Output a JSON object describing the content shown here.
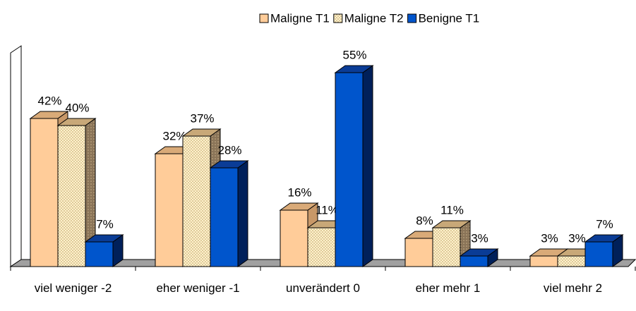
{
  "chart_data": {
    "type": "bar3d",
    "categories": [
      "viel weniger -2",
      "eher weniger -1",
      "unverändert 0",
      "eher mehr 1",
      "viel mehr 2"
    ],
    "series": [
      {
        "name": "Maligne T1",
        "color": "#ffcc99",
        "values": [
          42,
          32,
          16,
          8,
          3
        ],
        "value_labels": [
          "42%",
          "32%",
          "16%",
          "8%",
          "3%"
        ]
      },
      {
        "name": "Maligne T2",
        "color": "#fff2cc",
        "values": [
          40,
          37,
          11,
          11,
          3
        ],
        "value_labels": [
          "40%",
          "37%",
          "11%",
          "11%",
          "3%"
        ]
      },
      {
        "name": "Benigne T1",
        "color": "#0055cc",
        "values": [
          7,
          28,
          55,
          3,
          7
        ],
        "value_labels": [
          "7%",
          "28%",
          "55%",
          "3%",
          "7%"
        ]
      }
    ],
    "legend": "top"
  }
}
